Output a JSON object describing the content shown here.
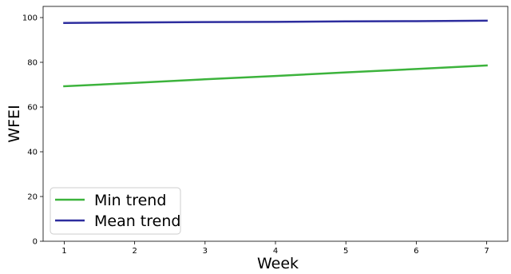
{
  "chart_data": {
    "type": "line",
    "title": "",
    "xlabel": "Week",
    "ylabel": "WFEI",
    "x": [
      1,
      2,
      3,
      4,
      5,
      6,
      7
    ],
    "xlim": [
      0.7,
      7.3
    ],
    "ylim": [
      0,
      105
    ],
    "xticks": [
      1,
      2,
      3,
      4,
      5,
      6,
      7
    ],
    "yticks": [
      0,
      20,
      40,
      60,
      80,
      100
    ],
    "grid": false,
    "legend_position": "lower-left",
    "series": [
      {
        "name": "Min trend",
        "color": "#3cb33c",
        "values": [
          69.3,
          70.8,
          72.4,
          73.9,
          75.5,
          77.0,
          78.6
        ]
      },
      {
        "name": "Mean trend",
        "color": "#2d2d9e",
        "values": [
          97.6,
          97.8,
          98.0,
          98.1,
          98.3,
          98.4,
          98.6
        ]
      }
    ]
  }
}
